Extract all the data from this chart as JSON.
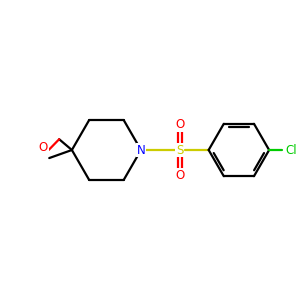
{
  "bg_color": "#ffffff",
  "atom_colors": {
    "C": "#000000",
    "N": "#0000ff",
    "O": "#ff0000",
    "S": "#cccc00",
    "Cl": "#00cc00"
  },
  "bond_color": "#000000",
  "line_width": 1.6,
  "figsize": [
    3.0,
    3.0
  ],
  "dpi": 100,
  "xlim": [
    0,
    10
  ],
  "ylim": [
    2,
    8
  ]
}
